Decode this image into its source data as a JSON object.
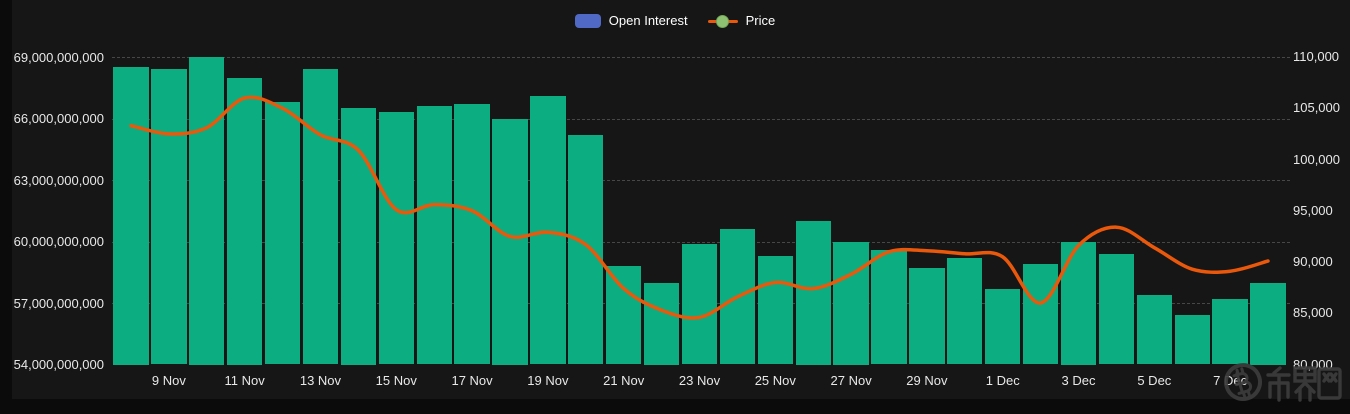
{
  "legend": {
    "items": [
      {
        "label": "Open Interest",
        "type": "bar",
        "color": "#5069c5"
      },
      {
        "label": "Price",
        "type": "line",
        "line_color": "#ea580c",
        "marker_color": "#8fc172"
      }
    ]
  },
  "chart_data": {
    "type": "bar",
    "title": "",
    "xlabel": "",
    "ylabel_left": "",
    "ylabel_right": "",
    "grid": "horizontal-dashed",
    "legend_position": "top-center",
    "categories": [
      "8 Nov",
      "9 Nov",
      "10 Nov",
      "11 Nov",
      "12 Nov",
      "13 Nov",
      "14 Nov",
      "15 Nov",
      "16 Nov",
      "17 Nov",
      "18 Nov",
      "19 Nov",
      "20 Nov",
      "21 Nov",
      "22 Nov",
      "23 Nov",
      "24 Nov",
      "25 Nov",
      "26 Nov",
      "27 Nov",
      "28 Nov",
      "29 Nov",
      "30 Nov",
      "1 Dec",
      "2 Dec",
      "3 Dec",
      "4 Dec",
      "5 Dec",
      "6 Dec",
      "7 Dec",
      "8 Dec"
    ],
    "x_axis": {
      "label_start_index": 1,
      "label_every": 2,
      "shown_labels": [
        "9 Nov",
        "11 Nov",
        "13 Nov",
        "15 Nov",
        "17 Nov",
        "19 Nov",
        "21 Nov",
        "23 Nov",
        "25 Nov",
        "27 Nov",
        "29 Nov",
        "1 Dec",
        "3 Dec",
        "5 Dec",
        "7 Dec"
      ]
    },
    "left_axis": {
      "min": 54000000000,
      "max": 69000000000,
      "tick_step": 3000000000,
      "tick_labels": [
        "69,000,000,000",
        "66,000,000,000",
        "63,000,000,000",
        "60,000,000,000",
        "57,000,000,000",
        "54,000,000,000"
      ]
    },
    "right_axis": {
      "min": 80000,
      "max": 110000,
      "tick_step": 5000,
      "tick_labels": [
        "110,000",
        "105,000",
        "100,000",
        "95,000",
        "90,000",
        "85,000",
        "80,000"
      ]
    },
    "series": [
      {
        "name": "Open Interest",
        "type": "bar",
        "y_axis": "left",
        "color": "#0cad80",
        "values": [
          68500000000,
          68400000000,
          69000000000,
          68000000000,
          66800000000,
          68400000000,
          66500000000,
          66300000000,
          66600000000,
          66700000000,
          66000000000,
          67100000000,
          65200000000,
          58800000000,
          58000000000,
          59900000000,
          60600000000,
          59300000000,
          61000000000,
          60000000000,
          59600000000,
          58700000000,
          59200000000,
          57700000000,
          58900000000,
          60000000000,
          59400000000,
          57400000000,
          56400000000,
          57200000000,
          58000000000
        ]
      },
      {
        "name": "Price",
        "type": "line",
        "y_axis": "right",
        "color": "#ea580c",
        "values": [
          103300,
          102500,
          103100,
          106000,
          105000,
          102400,
          100900,
          95100,
          95600,
          95000,
          92500,
          92900,
          91700,
          87400,
          85300,
          84600,
          86600,
          88000,
          87400,
          88800,
          91000,
          91100,
          90800,
          90500,
          86000,
          91600,
          93400,
          91400,
          89300,
          89100,
          90100
        ]
      }
    ]
  },
  "watermark": {
    "symbol": "bitcoin-logo",
    "text": "币界网"
  }
}
